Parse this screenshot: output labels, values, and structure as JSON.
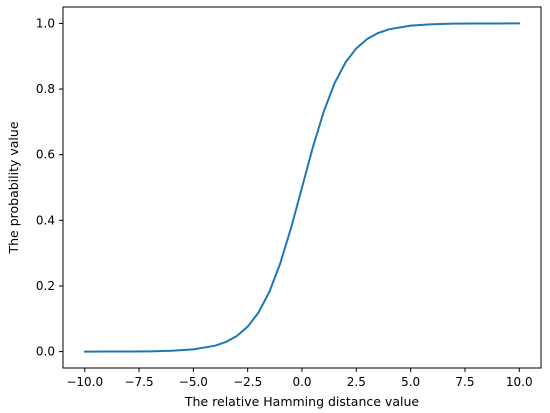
{
  "chart_data": {
    "type": "line",
    "title": "",
    "xlabel": "The relative Hamming distance value",
    "ylabel": "The probability value",
    "xlim": [
      -11,
      11
    ],
    "ylim": [
      -0.05,
      1.05
    ],
    "x_ticks": [
      -10.0,
      -7.5,
      -5.0,
      -2.5,
      0.0,
      2.5,
      5.0,
      7.5,
      10.0
    ],
    "x_tick_labels": [
      "−10.0",
      "−7.5",
      "−5.0",
      "−2.5",
      "0.0",
      "2.5",
      "5.0",
      "7.5",
      "10.0"
    ],
    "y_ticks": [
      0.0,
      0.2,
      0.4,
      0.6,
      0.8,
      1.0
    ],
    "y_tick_labels": [
      "0.0",
      "0.2",
      "0.4",
      "0.6",
      "0.8",
      "1.0"
    ],
    "grid": false,
    "series": [
      {
        "color": "#1f77b4",
        "x": [
          -10,
          -9,
          -8,
          -7,
          -6,
          -5,
          -4,
          -3.5,
          -3,
          -2.5,
          -2,
          -1.5,
          -1,
          -0.5,
          0,
          0.5,
          1,
          1.5,
          2,
          2.5,
          3,
          3.5,
          4,
          5,
          6,
          7,
          8,
          9,
          10
        ],
        "y": [
          0.0,
          0.0001,
          0.0003,
          0.0008,
          0.0025,
          0.0067,
          0.018,
          0.0293,
          0.0474,
          0.0759,
          0.1192,
          0.1824,
          0.2689,
          0.3775,
          0.5,
          0.6225,
          0.7311,
          0.8176,
          0.8808,
          0.9241,
          0.9526,
          0.9707,
          0.982,
          0.9933,
          0.9975,
          0.9992,
          0.9997,
          0.9999,
          1.0
        ]
      }
    ]
  }
}
